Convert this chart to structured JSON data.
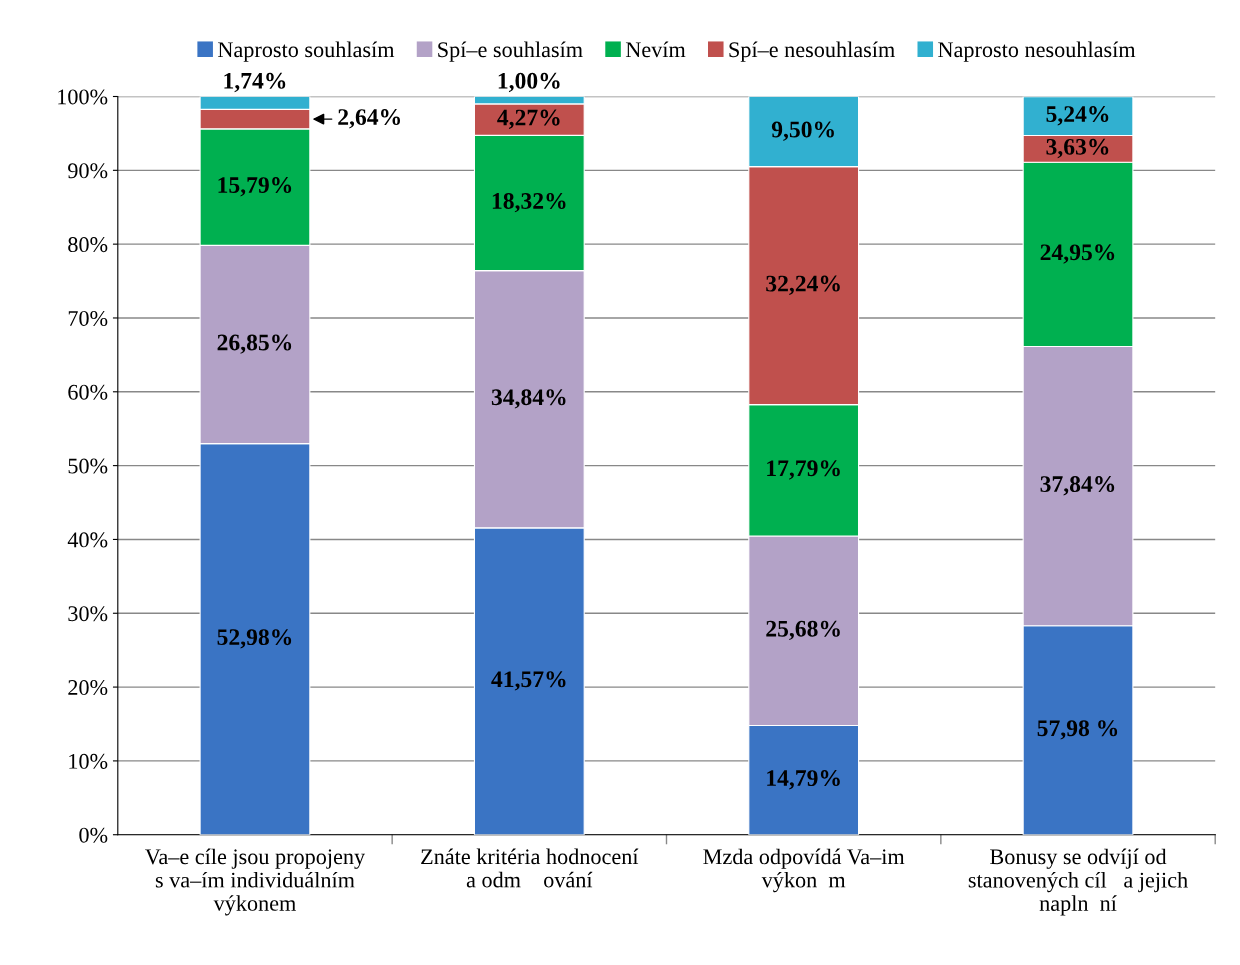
{
  "chart_data": {
    "type": "bar",
    "stacked": true,
    "categories": [
      "Va–e cíle jsou propojeny\ns va–ím individuálním\nvýkonem",
      "Znáte kritéria hodnocení\na odm    ování",
      "Mzda odpovídá Va–im\nvýkon  m",
      "Bonusy se odvíjí od\nstanovených cíl   a jejich\nnapln  ní"
    ],
    "series": [
      {
        "name": "Naprosto souhlasím",
        "color": "#3a74c4",
        "values": [
          52.98,
          41.57,
          14.79,
          28.3
        ],
        "value_labels": [
          "52,98%",
          "41,57%",
          "14,79%",
          null
        ]
      },
      {
        "name": "Spí–e souhlasím",
        "color": "#b3a2c7",
        "values": [
          26.85,
          34.84,
          25.68,
          37.84
        ],
        "value_labels": [
          "26,85%",
          "34,84%",
          "25,68%",
          "37,84%"
        ]
      },
      {
        "name": "Nevím",
        "color": "#00b050",
        "values": [
          15.79,
          18.32,
          17.79,
          24.95
        ],
        "value_labels": [
          "15,79%",
          "18,32%",
          "17,79%",
          "24,95%"
        ]
      },
      {
        "name": "Spí–e nesouhlasím",
        "color": "#c0504d",
        "values": [
          2.64,
          4.27,
          32.24,
          3.63
        ],
        "value_labels": [
          "2,64%",
          "4,27%",
          "32,24%",
          "3,63%"
        ]
      },
      {
        "name": "Naprosto nesouhlasím",
        "color": "#31b0d0",
        "values": [
          1.74,
          1.0,
          9.5,
          5.24
        ],
        "value_labels": [
          "1,74%",
          "1,00%",
          "9,50%",
          "5,24%"
        ]
      }
    ],
    "ylim": [
      0,
      100
    ],
    "yticks": [
      {
        "value": 0,
        "label": "0%"
      },
      {
        "value": 10,
        "label": "10%"
      },
      {
        "value": 20,
        "label": "20%"
      },
      {
        "value": 30,
        "label": "30%"
      },
      {
        "value": 40,
        "label": "40%"
      },
      {
        "value": 50,
        "label": "50%"
      },
      {
        "value": 60,
        "label": "60%"
      },
      {
        "value": 70,
        "label": "70%"
      },
      {
        "value": 80,
        "label": "80%"
      },
      {
        "value": 90,
        "label": "90%"
      },
      {
        "value": 100,
        "label": "100%"
      }
    ],
    "annotations": [
      "57,98 %"
    ],
    "grid": "y",
    "legend": "top"
  }
}
